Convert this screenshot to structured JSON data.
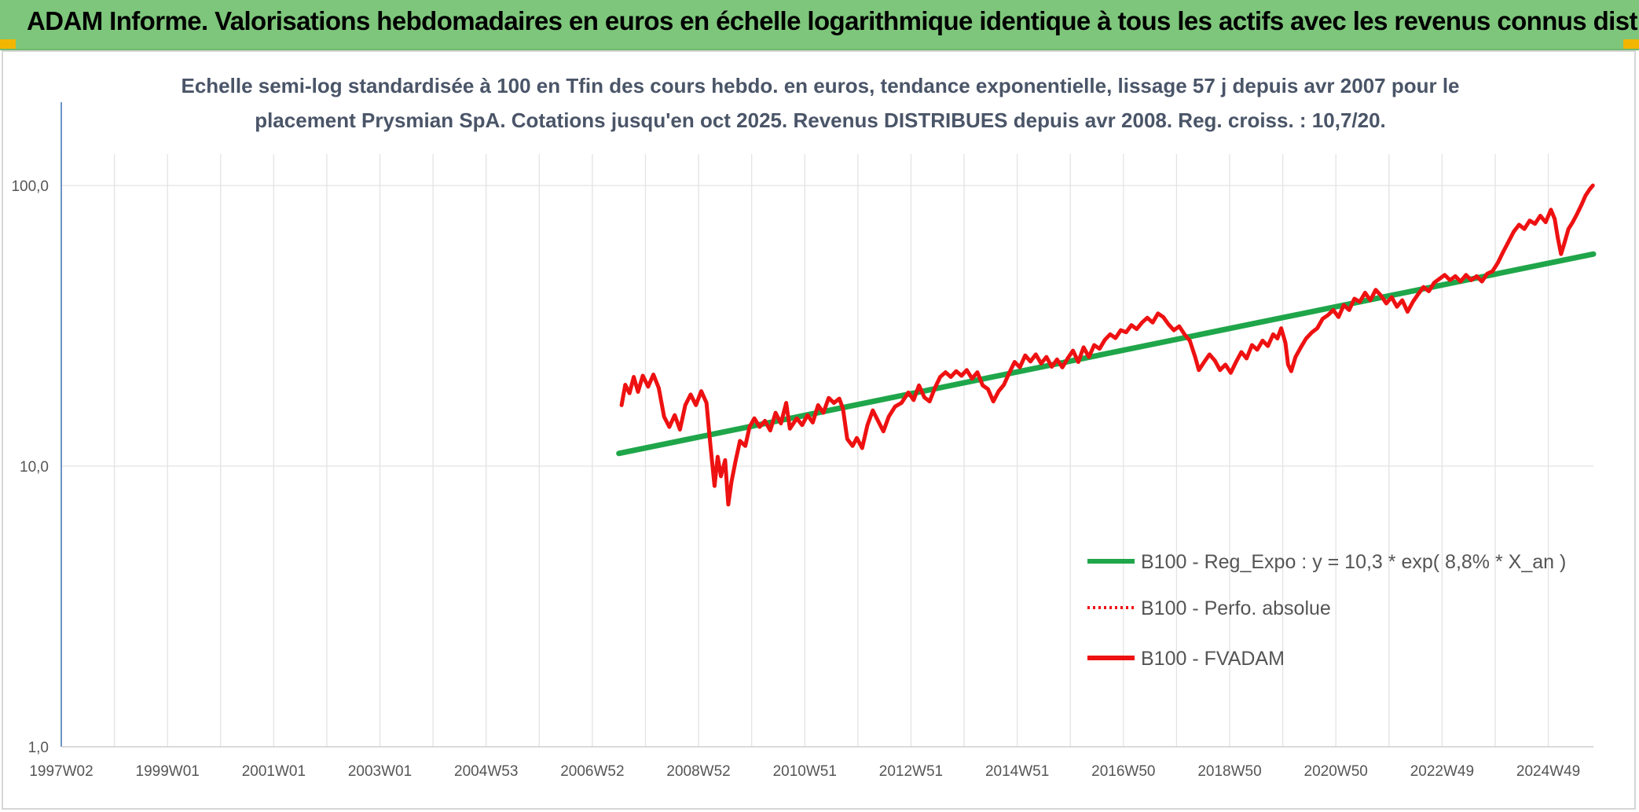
{
  "header": {
    "banner_title": "ADAM Informe. Valorisations hebdomadaires en euros en échelle logarithmique identique à tous les actifs avec les revenus connus distribués",
    "banner_color": "#7dc67b"
  },
  "chart_data": {
    "type": "line",
    "title_lines": [
      "Echelle semi-log standardisée à 100 en Tfin des cours hebdo. en euros, tendance exponentielle, lissage 57 j depuis avr 2007 pour le",
      "placement Prysmian SpA. Cotations jusqu'en oct 2025. Revenus DISTRIBUES depuis avr 2008. Reg. croiss. : 10,7/20."
    ],
    "y_scale": "log",
    "ylim": [
      1,
      100
    ],
    "y_ticks": [
      {
        "value": 1,
        "label": "1,0"
      },
      {
        "value": 10,
        "label": "10,0"
      },
      {
        "value": 100,
        "label": "100,0"
      }
    ],
    "x_range": [
      1997.0,
      2025.85
    ],
    "x_ticks": [
      {
        "value": 1997.0,
        "label": "1997W02"
      },
      {
        "value": 1999.0,
        "label": "1999W01"
      },
      {
        "value": 2001.0,
        "label": "2001W01"
      },
      {
        "value": 2003.0,
        "label": "2003W01"
      },
      {
        "value": 2005.0,
        "label": "2004W53"
      },
      {
        "value": 2007.0,
        "label": "2006W52"
      },
      {
        "value": 2009.0,
        "label": "2008W52"
      },
      {
        "value": 2011.0,
        "label": "2010W51"
      },
      {
        "value": 2013.0,
        "label": "2012W51"
      },
      {
        "value": 2015.0,
        "label": "2014W51"
      },
      {
        "value": 2017.0,
        "label": "2016W50"
      },
      {
        "value": 2019.0,
        "label": "2018W50"
      },
      {
        "value": 2021.0,
        "label": "2020W50"
      },
      {
        "value": 2023.0,
        "label": "2022W49"
      },
      {
        "value": 2025.0,
        "label": "2024W49"
      }
    ],
    "grid": true,
    "legend_position": "lower-right",
    "series": [
      {
        "name": "B100 - Reg_Expo : y = 10,3 * exp( 8,8% *  X_an )",
        "color": "#1fa64a",
        "style": "solid",
        "points": [
          [
            2007.5,
            11.1
          ],
          [
            2025.85,
            57.0
          ]
        ]
      },
      {
        "name": "B100 - Perfo. absolue",
        "color": "#ee1111",
        "style": "dotted",
        "points": []
      },
      {
        "name": "B100 - FVADAM",
        "color": "#ee1111",
        "style": "solid",
        "points": [
          [
            2007.55,
            16.5
          ],
          [
            2007.62,
            19.5
          ],
          [
            2007.7,
            18.2
          ],
          [
            2007.78,
            20.8
          ],
          [
            2007.86,
            18.4
          ],
          [
            2007.95,
            21.0
          ],
          [
            2008.05,
            19.2
          ],
          [
            2008.15,
            21.2
          ],
          [
            2008.25,
            19.0
          ],
          [
            2008.35,
            15.0
          ],
          [
            2008.45,
            13.8
          ],
          [
            2008.55,
            15.2
          ],
          [
            2008.65,
            13.5
          ],
          [
            2008.75,
            16.5
          ],
          [
            2008.85,
            18.0
          ],
          [
            2008.95,
            16.5
          ],
          [
            2009.05,
            18.5
          ],
          [
            2009.15,
            16.8
          ],
          [
            2009.22,
            12.0
          ],
          [
            2009.3,
            8.5
          ],
          [
            2009.36,
            10.8
          ],
          [
            2009.42,
            9.2
          ],
          [
            2009.5,
            10.5
          ],
          [
            2009.56,
            7.3
          ],
          [
            2009.62,
            8.8
          ],
          [
            2009.7,
            10.5
          ],
          [
            2009.78,
            12.3
          ],
          [
            2009.88,
            11.8
          ],
          [
            2009.96,
            13.8
          ],
          [
            2010.05,
            14.8
          ],
          [
            2010.15,
            13.8
          ],
          [
            2010.25,
            14.5
          ],
          [
            2010.35,
            13.4
          ],
          [
            2010.45,
            15.5
          ],
          [
            2010.55,
            14.2
          ],
          [
            2010.65,
            16.8
          ],
          [
            2010.72,
            13.6
          ],
          [
            2010.85,
            14.8
          ],
          [
            2010.95,
            14.0
          ],
          [
            2011.05,
            15.2
          ],
          [
            2011.15,
            14.3
          ],
          [
            2011.25,
            16.5
          ],
          [
            2011.35,
            15.5
          ],
          [
            2011.45,
            17.5
          ],
          [
            2011.55,
            16.8
          ],
          [
            2011.65,
            17.4
          ],
          [
            2011.72,
            16.0
          ],
          [
            2011.8,
            12.5
          ],
          [
            2011.9,
            11.8
          ],
          [
            2011.98,
            12.6
          ],
          [
            2012.08,
            11.6
          ],
          [
            2012.18,
            14.0
          ],
          [
            2012.28,
            15.8
          ],
          [
            2012.38,
            14.5
          ],
          [
            2012.48,
            13.3
          ],
          [
            2012.58,
            15.0
          ],
          [
            2012.7,
            16.3
          ],
          [
            2012.82,
            16.8
          ],
          [
            2012.95,
            18.3
          ],
          [
            2013.05,
            17.2
          ],
          [
            2013.15,
            19.4
          ],
          [
            2013.25,
            17.6
          ],
          [
            2013.35,
            17.0
          ],
          [
            2013.45,
            19.0
          ],
          [
            2013.55,
            20.8
          ],
          [
            2013.65,
            21.6
          ],
          [
            2013.75,
            20.8
          ],
          [
            2013.85,
            21.8
          ],
          [
            2013.95,
            21.0
          ],
          [
            2014.05,
            22.0
          ],
          [
            2014.15,
            20.5
          ],
          [
            2014.25,
            21.6
          ],
          [
            2014.35,
            19.4
          ],
          [
            2014.45,
            18.8
          ],
          [
            2014.55,
            17.0
          ],
          [
            2014.65,
            18.5
          ],
          [
            2014.75,
            19.5
          ],
          [
            2014.85,
            21.5
          ],
          [
            2014.95,
            23.5
          ],
          [
            2015.05,
            22.5
          ],
          [
            2015.15,
            24.8
          ],
          [
            2015.25,
            23.6
          ],
          [
            2015.35,
            25.0
          ],
          [
            2015.45,
            23.2
          ],
          [
            2015.55,
            24.5
          ],
          [
            2015.65,
            22.6
          ],
          [
            2015.75,
            24.0
          ],
          [
            2015.85,
            22.5
          ],
          [
            2015.95,
            24.2
          ],
          [
            2016.05,
            25.8
          ],
          [
            2016.15,
            23.5
          ],
          [
            2016.25,
            26.5
          ],
          [
            2016.35,
            24.5
          ],
          [
            2016.45,
            27.0
          ],
          [
            2016.55,
            26.2
          ],
          [
            2016.65,
            28.2
          ],
          [
            2016.75,
            29.5
          ],
          [
            2016.85,
            28.6
          ],
          [
            2016.95,
            30.5
          ],
          [
            2017.05,
            30.0
          ],
          [
            2017.15,
            31.8
          ],
          [
            2017.25,
            30.8
          ],
          [
            2017.35,
            32.5
          ],
          [
            2017.45,
            33.8
          ],
          [
            2017.55,
            32.5
          ],
          [
            2017.65,
            35.0
          ],
          [
            2017.75,
            34.0
          ],
          [
            2017.85,
            32.0
          ],
          [
            2017.95,
            30.5
          ],
          [
            2018.05,
            31.5
          ],
          [
            2018.15,
            29.5
          ],
          [
            2018.25,
            28.0
          ],
          [
            2018.35,
            24.5
          ],
          [
            2018.42,
            22.0
          ],
          [
            2018.52,
            23.5
          ],
          [
            2018.62,
            25.0
          ],
          [
            2018.72,
            23.8
          ],
          [
            2018.82,
            22.0
          ],
          [
            2018.92,
            23.0
          ],
          [
            2019.02,
            21.5
          ],
          [
            2019.12,
            23.5
          ],
          [
            2019.22,
            25.5
          ],
          [
            2019.32,
            24.2
          ],
          [
            2019.42,
            27.0
          ],
          [
            2019.52,
            26.0
          ],
          [
            2019.62,
            28.0
          ],
          [
            2019.72,
            26.8
          ],
          [
            2019.82,
            29.5
          ],
          [
            2019.9,
            28.5
          ],
          [
            2019.97,
            31.0
          ],
          [
            2020.05,
            27.5
          ],
          [
            2020.1,
            23.0
          ],
          [
            2020.16,
            21.8
          ],
          [
            2020.24,
            24.5
          ],
          [
            2020.34,
            26.5
          ],
          [
            2020.44,
            28.5
          ],
          [
            2020.55,
            30.0
          ],
          [
            2020.65,
            31.0
          ],
          [
            2020.75,
            33.5
          ],
          [
            2020.85,
            34.5
          ],
          [
            2020.95,
            36.0
          ],
          [
            2021.05,
            34.0
          ],
          [
            2021.15,
            37.5
          ],
          [
            2021.25,
            36.0
          ],
          [
            2021.35,
            39.5
          ],
          [
            2021.45,
            38.5
          ],
          [
            2021.55,
            41.5
          ],
          [
            2021.65,
            39.0
          ],
          [
            2021.75,
            42.5
          ],
          [
            2021.85,
            40.5
          ],
          [
            2021.95,
            38.0
          ],
          [
            2022.05,
            40.0
          ],
          [
            2022.15,
            37.0
          ],
          [
            2022.25,
            39.0
          ],
          [
            2022.35,
            35.5
          ],
          [
            2022.45,
            38.5
          ],
          [
            2022.55,
            41.0
          ],
          [
            2022.65,
            43.5
          ],
          [
            2022.75,
            42.0
          ],
          [
            2022.85,
            45.0
          ],
          [
            2022.95,
            46.5
          ],
          [
            2023.05,
            48.0
          ],
          [
            2023.15,
            46.0
          ],
          [
            2023.25,
            47.5
          ],
          [
            2023.35,
            45.5
          ],
          [
            2023.45,
            48.0
          ],
          [
            2023.55,
            46.0
          ],
          [
            2023.65,
            47.5
          ],
          [
            2023.75,
            45.5
          ],
          [
            2023.85,
            48.5
          ],
          [
            2023.95,
            49.5
          ],
          [
            2024.05,
            53.0
          ],
          [
            2024.15,
            58.0
          ],
          [
            2024.25,
            63.0
          ],
          [
            2024.35,
            68.5
          ],
          [
            2024.45,
            72.5
          ],
          [
            2024.55,
            70.0
          ],
          [
            2024.65,
            75.0
          ],
          [
            2024.75,
            73.0
          ],
          [
            2024.85,
            78.0
          ],
          [
            2024.95,
            74.0
          ],
          [
            2025.05,
            82.0
          ],
          [
            2025.12,
            76.0
          ],
          [
            2025.18,
            65.0
          ],
          [
            2025.24,
            57.0
          ],
          [
            2025.3,
            62.0
          ],
          [
            2025.38,
            70.0
          ],
          [
            2025.46,
            74.0
          ],
          [
            2025.54,
            79.0
          ],
          [
            2025.62,
            85.0
          ],
          [
            2025.7,
            92.0
          ],
          [
            2025.78,
            97.0
          ],
          [
            2025.84,
            100.0
          ]
        ]
      }
    ]
  }
}
